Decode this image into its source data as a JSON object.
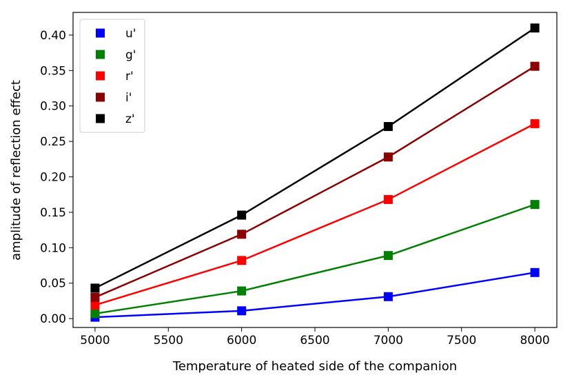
{
  "chart_data": {
    "type": "line",
    "title": "",
    "xlabel": "Temperature of heated side of the companion",
    "ylabel": "amplitude of reflection effect",
    "x": [
      5000,
      6000,
      7000,
      8000
    ],
    "xlim": [
      4850,
      8150
    ],
    "ylim": [
      -0.0125,
      0.432
    ],
    "xticks": [
      5000,
      5500,
      6000,
      6500,
      7000,
      7500,
      8000
    ],
    "yticks": [
      0.0,
      0.05,
      0.1,
      0.15,
      0.2,
      0.25,
      0.3,
      0.35,
      0.4
    ],
    "xtick_labels": [
      "5000",
      "5500",
      "6000",
      "6500",
      "7000",
      "7500",
      "8000"
    ],
    "ytick_labels": [
      "0.00",
      "0.05",
      "0.10",
      "0.15",
      "0.20",
      "0.25",
      "0.30",
      "0.35",
      "0.40"
    ],
    "grid": false,
    "legend_position": "top-left",
    "series": [
      {
        "name": "u'",
        "color": "#0000ff",
        "values": [
          0.002,
          0.011,
          0.031,
          0.065
        ]
      },
      {
        "name": "g'",
        "color": "#008000",
        "values": [
          0.007,
          0.039,
          0.089,
          0.161
        ]
      },
      {
        "name": "r'",
        "color": "#ff0000",
        "values": [
          0.019,
          0.082,
          0.168,
          0.275
        ]
      },
      {
        "name": "i'",
        "color": "#8b0000",
        "values": [
          0.03,
          0.119,
          0.228,
          0.356
        ]
      },
      {
        "name": "z'",
        "color": "#000000",
        "values": [
          0.043,
          0.146,
          0.271,
          0.41
        ]
      }
    ]
  }
}
